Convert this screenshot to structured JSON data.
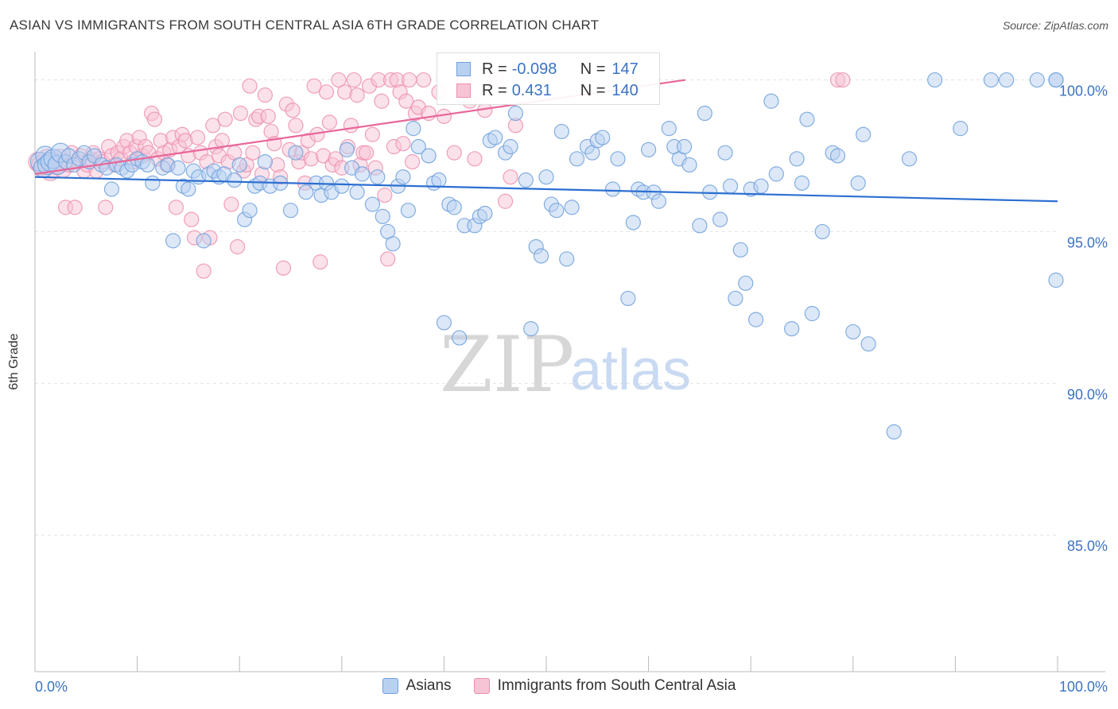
{
  "title": "ASIAN VS IMMIGRANTS FROM SOUTH CENTRAL ASIA 6TH GRADE CORRELATION CHART",
  "source": "Source: ZipAtlas.com",
  "watermark": {
    "zip": "ZIP",
    "atlas": "atlas"
  },
  "legend": {
    "rows": [
      {
        "r_label": "R =",
        "r_value": "-0.098",
        "n_label": "N =",
        "n_value": "147",
        "color": "#6fa0dc",
        "fill": "#b9d1f1"
      },
      {
        "r_label": "R =",
        "r_value": "0.431",
        "n_label": "N =",
        "n_value": "140",
        "color": "#ec8fae",
        "fill": "#f7c4d5"
      }
    ]
  },
  "bottom_legend": {
    "series1": "Asians",
    "series2": "Immigrants from South Central Asia"
  },
  "chart_data": {
    "type": "scatter",
    "title": "ASIAN VS IMMIGRANTS FROM SOUTH CENTRAL ASIA 6TH GRADE CORRELATION CHART",
    "ylabel": "6th Grade",
    "xlabel": "",
    "xlim": [
      0,
      100
    ],
    "ylim": [
      80.5,
      100.8
    ],
    "x_tick_labels": [
      {
        "value": 0,
        "label": "0.0%"
      },
      {
        "value": 100,
        "label": "100.0%"
      }
    ],
    "y_tick_labels": [
      {
        "value": 100,
        "label": "100.0%"
      },
      {
        "value": 95,
        "label": "95.0%"
      },
      {
        "value": 90,
        "label": "90.0%"
      },
      {
        "value": 85,
        "label": "85.0%"
      }
    ],
    "x_minor_ticks": [
      0,
      10,
      20,
      30,
      40,
      50,
      60,
      70,
      80,
      90,
      100
    ],
    "grid": true,
    "legend_position": "top-center",
    "series": [
      {
        "name": "Asians",
        "color": "#6fa0dc",
        "fill": "#b9d1f1",
        "trend": {
          "x0": 0,
          "y0": 96.8,
          "x1": 100,
          "y1": 96.0
        },
        "points": [
          [
            0.5,
            97.3
          ],
          [
            0.8,
            97.1
          ],
          [
            1.0,
            97.5
          ],
          [
            1.2,
            97.2
          ],
          [
            1.5,
            97.3
          ],
          [
            1.8,
            97.4
          ],
          [
            2.2,
            97.2
          ],
          [
            2.5,
            97.6
          ],
          [
            3.0,
            97.3
          ],
          [
            3.3,
            97.5
          ],
          [
            3.8,
            97.2
          ],
          [
            4.3,
            97.4
          ],
          [
            4.8,
            97.6
          ],
          [
            5.3,
            97.3
          ],
          [
            5.8,
            97.5
          ],
          [
            6.5,
            97.2
          ],
          [
            7.0,
            97.1
          ],
          [
            7.5,
            96.4
          ],
          [
            8.0,
            97.2
          ],
          [
            8.5,
            97.1
          ],
          [
            9.0,
            97.0
          ],
          [
            9.5,
            97.2
          ],
          [
            10.0,
            97.4
          ],
          [
            10.5,
            97.3
          ],
          [
            11.0,
            97.2
          ],
          [
            11.5,
            96.6
          ],
          [
            12.5,
            97.1
          ],
          [
            13.0,
            97.2
          ],
          [
            13.5,
            94.7
          ],
          [
            14.0,
            97.1
          ],
          [
            14.5,
            96.5
          ],
          [
            15.0,
            96.4
          ],
          [
            15.5,
            97.0
          ],
          [
            16.0,
            96.8
          ],
          [
            16.5,
            94.7
          ],
          [
            17.0,
            96.9
          ],
          [
            17.5,
            97.0
          ],
          [
            18.0,
            96.8
          ],
          [
            18.5,
            96.9
          ],
          [
            19.5,
            96.7
          ],
          [
            20.0,
            97.2
          ],
          [
            20.5,
            95.4
          ],
          [
            21.0,
            95.7
          ],
          [
            21.5,
            96.5
          ],
          [
            22.0,
            96.6
          ],
          [
            22.5,
            97.3
          ],
          [
            23.0,
            96.5
          ],
          [
            24.0,
            96.6
          ],
          [
            25.0,
            95.7
          ],
          [
            25.5,
            97.6
          ],
          [
            26.5,
            96.3
          ],
          [
            27.5,
            96.6
          ],
          [
            28.0,
            96.2
          ],
          [
            28.5,
            96.6
          ],
          [
            29.0,
            96.3
          ],
          [
            30.0,
            96.5
          ],
          [
            30.5,
            97.7
          ],
          [
            31.0,
            97.1
          ],
          [
            31.5,
            96.3
          ],
          [
            32.0,
            96.9
          ],
          [
            33.0,
            95.9
          ],
          [
            33.5,
            96.8
          ],
          [
            34.0,
            95.5
          ],
          [
            34.5,
            95.0
          ],
          [
            35.0,
            94.6
          ],
          [
            35.5,
            96.5
          ],
          [
            36.0,
            96.8
          ],
          [
            36.5,
            95.7
          ],
          [
            37.0,
            98.4
          ],
          [
            37.5,
            97.8
          ],
          [
            38.5,
            97.5
          ],
          [
            39.0,
            96.6
          ],
          [
            39.5,
            96.7
          ],
          [
            40.0,
            92.0
          ],
          [
            40.5,
            95.9
          ],
          [
            41.0,
            95.8
          ],
          [
            41.5,
            91.5
          ],
          [
            42.0,
            95.2
          ],
          [
            43.0,
            95.2
          ],
          [
            43.5,
            95.5
          ],
          [
            44.0,
            95.6
          ],
          [
            44.5,
            98.0
          ],
          [
            45.0,
            98.1
          ],
          [
            46.0,
            97.6
          ],
          [
            46.5,
            97.8
          ],
          [
            47.0,
            98.9
          ],
          [
            48.0,
            96.7
          ],
          [
            48.5,
            91.8
          ],
          [
            49.0,
            94.5
          ],
          [
            49.5,
            94.2
          ],
          [
            50.0,
            96.8
          ],
          [
            50.5,
            95.9
          ],
          [
            51.0,
            95.7
          ],
          [
            51.5,
            98.3
          ],
          [
            52.0,
            94.1
          ],
          [
            52.5,
            95.8
          ],
          [
            53.0,
            97.4
          ],
          [
            54.0,
            97.8
          ],
          [
            54.5,
            97.6
          ],
          [
            55.0,
            98.0
          ],
          [
            55.5,
            98.1
          ],
          [
            56.5,
            96.4
          ],
          [
            57.0,
            97.4
          ],
          [
            58.0,
            92.8
          ],
          [
            58.5,
            95.3
          ],
          [
            59.0,
            96.4
          ],
          [
            59.5,
            96.3
          ],
          [
            60.0,
            97.7
          ],
          [
            60.5,
            96.3
          ],
          [
            61.0,
            96.0
          ],
          [
            62.0,
            98.4
          ],
          [
            62.5,
            97.8
          ],
          [
            63.0,
            97.4
          ],
          [
            63.5,
            97.8
          ],
          [
            64.0,
            97.2
          ],
          [
            65.0,
            95.2
          ],
          [
            65.5,
            98.9
          ],
          [
            66.0,
            96.3
          ],
          [
            67.0,
            95.4
          ],
          [
            67.5,
            97.6
          ],
          [
            68.0,
            96.5
          ],
          [
            68.5,
            92.8
          ],
          [
            69.0,
            94.4
          ],
          [
            69.5,
            93.3
          ],
          [
            70.0,
            96.4
          ],
          [
            70.5,
            92.1
          ],
          [
            71.0,
            96.5
          ],
          [
            72.0,
            99.3
          ],
          [
            72.5,
            96.9
          ],
          [
            74.0,
            91.8
          ],
          [
            74.5,
            97.4
          ],
          [
            75.0,
            96.6
          ],
          [
            75.5,
            98.7
          ],
          [
            76.0,
            92.3
          ],
          [
            77.0,
            95.0
          ],
          [
            78.0,
            97.6
          ],
          [
            78.5,
            97.5
          ],
          [
            80.0,
            91.7
          ],
          [
            80.5,
            96.6
          ],
          [
            81.0,
            98.2
          ],
          [
            81.5,
            91.3
          ],
          [
            84.0,
            88.4
          ],
          [
            85.5,
            97.4
          ],
          [
            88.0,
            100.0
          ],
          [
            90.5,
            98.4
          ],
          [
            93.5,
            100.0
          ],
          [
            95.0,
            100.0
          ],
          [
            98.0,
            100.0
          ],
          [
            100.0,
            93.4
          ],
          [
            102.0,
            100.0
          ],
          [
            103.0,
            100.0
          ]
        ]
      },
      {
        "name": "Immigrants from South Central Asia",
        "color": "#ec8fae",
        "fill": "#f7c4d5",
        "trend": {
          "x0": 0,
          "y0": 96.9,
          "x1": 63.6,
          "y1": 100.0
        },
        "points": [
          [
            0.3,
            97.3
          ],
          [
            0.6,
            97.2
          ],
          [
            0.9,
            97.1
          ],
          [
            1.2,
            97.4
          ],
          [
            1.5,
            97.0
          ],
          [
            1.8,
            97.3
          ],
          [
            2.1,
            97.2
          ],
          [
            2.4,
            97.4
          ],
          [
            2.7,
            97.1
          ],
          [
            3.0,
            95.8
          ],
          [
            3.3,
            97.2
          ],
          [
            3.6,
            97.6
          ],
          [
            3.9,
            95.8
          ],
          [
            4.2,
            97.3
          ],
          [
            4.5,
            97.5
          ],
          [
            4.8,
            97.0
          ],
          [
            5.1,
            97.2
          ],
          [
            5.4,
            97.4
          ],
          [
            5.7,
            97.6
          ],
          [
            6.0,
            97.0
          ],
          [
            6.3,
            97.4
          ],
          [
            6.6,
            97.3
          ],
          [
            6.9,
            95.8
          ],
          [
            7.2,
            97.8
          ],
          [
            7.5,
            97.5
          ],
          [
            7.8,
            97.2
          ],
          [
            8.1,
            97.6
          ],
          [
            8.4,
            97.4
          ],
          [
            8.7,
            97.8
          ],
          [
            9.0,
            98.0
          ],
          [
            9.3,
            97.6
          ],
          [
            9.6,
            97.3
          ],
          [
            9.9,
            97.8
          ],
          [
            10.2,
            98.1
          ],
          [
            10.5,
            97.5
          ],
          [
            10.8,
            97.8
          ],
          [
            11.1,
            97.6
          ],
          [
            11.4,
            98.9
          ],
          [
            11.7,
            98.7
          ],
          [
            12.0,
            97.4
          ],
          [
            12.3,
            98.0
          ],
          [
            12.6,
            97.6
          ],
          [
            12.9,
            97.2
          ],
          [
            13.2,
            97.7
          ],
          [
            13.5,
            98.1
          ],
          [
            13.8,
            95.8
          ],
          [
            14.1,
            97.8
          ],
          [
            14.4,
            98.2
          ],
          [
            14.7,
            98.0
          ],
          [
            15.0,
            97.5
          ],
          [
            15.3,
            95.4
          ],
          [
            15.6,
            94.8
          ],
          [
            15.9,
            98.1
          ],
          [
            16.2,
            97.6
          ],
          [
            16.5,
            93.7
          ],
          [
            16.8,
            97.3
          ],
          [
            17.1,
            94.8
          ],
          [
            17.4,
            98.5
          ],
          [
            17.7,
            97.8
          ],
          [
            18.0,
            97.5
          ],
          [
            18.3,
            98.0
          ],
          [
            18.6,
            98.7
          ],
          [
            18.9,
            97.3
          ],
          [
            19.2,
            95.9
          ],
          [
            19.5,
            97.6
          ],
          [
            19.8,
            94.5
          ],
          [
            20.1,
            98.9
          ],
          [
            20.4,
            97.0
          ],
          [
            20.7,
            97.2
          ],
          [
            21.0,
            99.8
          ],
          [
            21.3,
            97.6
          ],
          [
            21.6,
            98.7
          ],
          [
            21.9,
            98.8
          ],
          [
            22.2,
            96.9
          ],
          [
            22.5,
            99.5
          ],
          [
            22.8,
            98.8
          ],
          [
            23.1,
            98.3
          ],
          [
            23.4,
            97.9
          ],
          [
            23.7,
            97.2
          ],
          [
            24.0,
            96.8
          ],
          [
            24.3,
            93.8
          ],
          [
            24.6,
            99.2
          ],
          [
            24.9,
            97.7
          ],
          [
            25.2,
            99.0
          ],
          [
            25.5,
            98.5
          ],
          [
            25.8,
            97.3
          ],
          [
            26.1,
            97.6
          ],
          [
            26.4,
            96.6
          ],
          [
            26.7,
            98.0
          ],
          [
            27.0,
            97.4
          ],
          [
            27.3,
            99.8
          ],
          [
            27.6,
            98.2
          ],
          [
            27.9,
            94.0
          ],
          [
            28.2,
            97.5
          ],
          [
            28.5,
            99.6
          ],
          [
            28.8,
            98.6
          ],
          [
            29.1,
            97.2
          ],
          [
            29.4,
            97.4
          ],
          [
            29.7,
            100.0
          ],
          [
            30.0,
            97.1
          ],
          [
            30.3,
            99.6
          ],
          [
            30.6,
            97.8
          ],
          [
            30.9,
            98.5
          ],
          [
            31.2,
            100.0
          ],
          [
            31.5,
            99.5
          ],
          [
            31.8,
            97.2
          ],
          [
            32.1,
            97.6
          ],
          [
            32.4,
            97.6
          ],
          [
            32.7,
            99.8
          ],
          [
            33.0,
            98.2
          ],
          [
            33.3,
            97.1
          ],
          [
            33.6,
            100.0
          ],
          [
            33.9,
            99.3
          ],
          [
            34.2,
            96.2
          ],
          [
            34.5,
            94.1
          ],
          [
            34.8,
            100.0
          ],
          [
            35.1,
            97.8
          ],
          [
            35.4,
            100.0
          ],
          [
            35.7,
            99.6
          ],
          [
            36.0,
            97.9
          ],
          [
            36.3,
            99.3
          ],
          [
            36.6,
            100.0
          ],
          [
            36.9,
            97.3
          ],
          [
            37.2,
            98.9
          ],
          [
            37.5,
            99.1
          ],
          [
            38.0,
            100.0
          ],
          [
            38.5,
            98.9
          ],
          [
            39.5,
            99.6
          ],
          [
            40.0,
            98.8
          ],
          [
            41.0,
            97.6
          ],
          [
            42.0,
            100.0
          ],
          [
            42.5,
            99.3
          ],
          [
            43.0,
            97.4
          ],
          [
            44.0,
            99.0
          ],
          [
            45.0,
            100.0
          ],
          [
            46.0,
            96.0
          ],
          [
            46.5,
            96.8
          ],
          [
            47.0,
            98.5
          ],
          [
            78.5,
            100.0
          ],
          [
            79.0,
            100.0
          ]
        ]
      }
    ]
  }
}
